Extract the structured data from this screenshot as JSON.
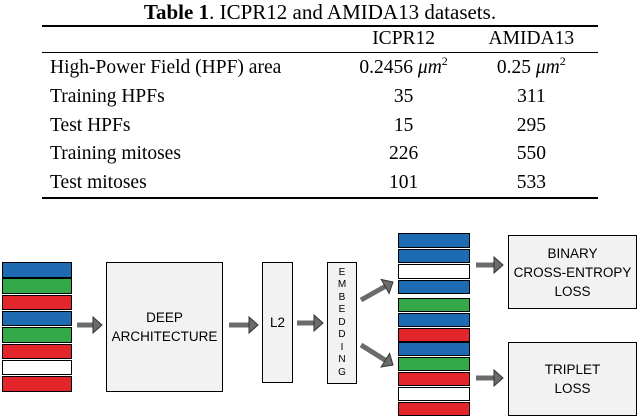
{
  "table": {
    "caption_bold": "Table 1",
    "caption_rest": ". ICPR12 and AMIDA13 datasets.",
    "columns": [
      "",
      "ICPR12",
      "AMIDA13"
    ],
    "rows": [
      {
        "label": "High-Power Field (HPF) area",
        "icpr12": "0.2456",
        "amida13": "0.25",
        "unit": "μm",
        "exp": "2"
      },
      {
        "label": "Training HPFs",
        "icpr12": "35",
        "amida13": "311"
      },
      {
        "label": "Test HPFs",
        "icpr12": "15",
        "amida13": "295"
      },
      {
        "label": "Training mitoses",
        "icpr12": "226",
        "amida13": "550"
      },
      {
        "label": "Test mitoses",
        "icpr12": "101",
        "amida13": "533"
      }
    ]
  },
  "diagram": {
    "deep_line1": "DEEP",
    "deep_line2": "ARCHITECTURE",
    "l2": "L2",
    "embedding_letters": [
      "E",
      "M",
      "B",
      "E",
      "D",
      "D",
      "I",
      "N",
      "G"
    ],
    "binary_line1": "BINARY",
    "binary_line2": "CROSS-ENTROPY",
    "binary_line3": "LOSS",
    "triplet_line1": "TRIPLET",
    "triplet_line2": "LOSS",
    "colors": {
      "blue": "#1f6bb3",
      "green": "#35a84a",
      "red": "#e3262b",
      "white": "#ffffff",
      "box_fill": "#f2f2f2",
      "arrow": "#6b6b6b"
    },
    "input_stack": [
      "blue",
      "green",
      "red",
      "blue",
      "green",
      "red",
      "white",
      "red"
    ],
    "binary_stack": [
      "blue",
      "blue",
      "white",
      "blue"
    ],
    "triplet_stack": [
      "green",
      "blue",
      "red",
      "blue",
      "green",
      "red",
      "white",
      "red"
    ]
  }
}
